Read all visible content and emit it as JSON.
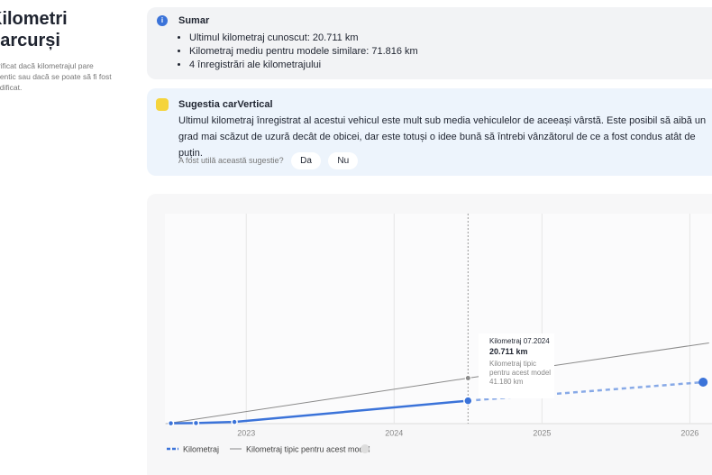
{
  "sidebar": {
    "title": "Kilometri parcurși",
    "description": "Verificat dacă kilometrajul pare autentic sau dacă se poate să fi fost modificat."
  },
  "summary": {
    "title": "Sumar",
    "items": [
      "Ultimul kilometraj cunoscut: 20.711 km",
      "Kilometraj mediu pentru modele similare: 71.816 km",
      "4 înregistrări ale kilometrajului"
    ]
  },
  "suggestion": {
    "title": "Sugestia carVertical",
    "text": "Ultimul kilometraj înregistrat al acestui vehicul este mult sub media vehiculelor de aceeași vârstă. Este posibil să aibă un grad mai scăzut de uzură decât de obicei, dar este totuși o idee bună să întrebi vânzătorul de ce a fost condus atât de puțin.",
    "feedback": {
      "question": "A fost utilă această sugestie?",
      "buttons": [
        "Da",
        "Nu"
      ]
    }
  },
  "chart": {
    "type": "line",
    "xlim": [
      2022.45,
      2026.15
    ],
    "xticks": [
      2023,
      2024,
      2025,
      2026
    ],
    "ylim": [
      0,
      190000
    ],
    "series": [
      {
        "name": "Kilometraj",
        "color": "#3b73d9",
        "x": [
          2022.49,
          2022.66,
          2022.92,
          2024.5
        ],
        "values": [
          300,
          500,
          1500,
          20711
        ],
        "projection": {
          "x": [
            2024.5,
            2026.09
          ],
          "values": [
            20711,
            37500
          ]
        }
      },
      {
        "name": "Kilometraj tipic pentru acest model",
        "color": "#8a8a8a",
        "x": [
          2022.46,
          2024.5,
          2026.13
        ],
        "values": [
          0,
          41180,
          73000
        ]
      }
    ],
    "tooltip": {
      "title": "Kilometraj 07.2024",
      "value": "20.711 km",
      "typical_label": "Kilometraj tipic pentru acest model",
      "typical_value": "41.180 km"
    }
  }
}
